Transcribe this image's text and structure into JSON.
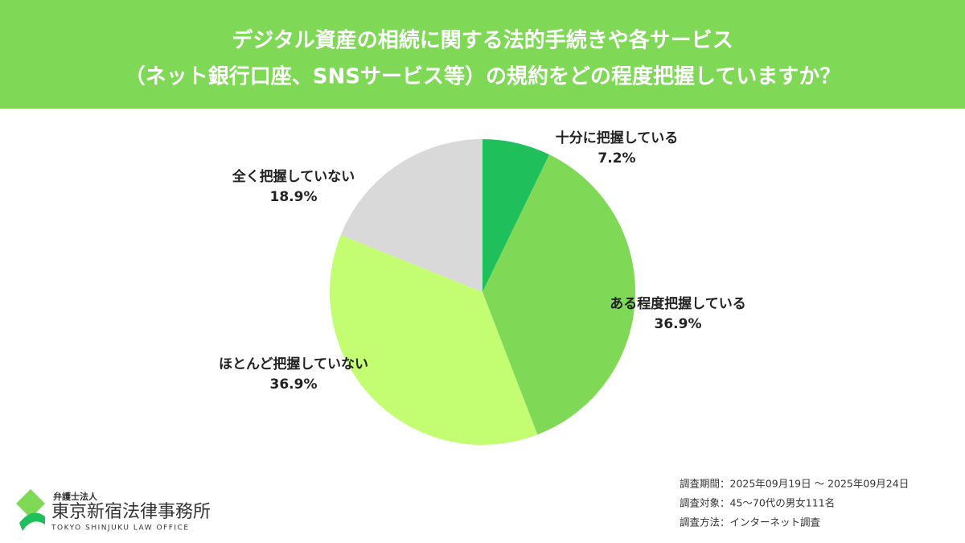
{
  "chart_data": {
    "type": "pie",
    "title": [
      "デジタル資産の相続に関する法的手続きや各サービス",
      "（ネット銀行口座、SNSサービス等）の規約をどの程度把握していますか？"
    ],
    "categories": [
      "十分に把握している",
      "ある程度把握している",
      "ほとんど把握していない",
      "全く把握していない"
    ],
    "values": [
      7.2,
      36.9,
      36.9,
      18.9
    ],
    "value_labels": [
      "7.2%",
      "36.9%",
      "36.9%",
      "18.9%"
    ],
    "colors": [
      "#1fbf5c",
      "#7fd957",
      "#c3fd72",
      "#d9d9d9"
    ]
  },
  "notes": [
    "調査期間：2025年09月19日 〜 2025年09月24日",
    "調査対象：45〜70代の男女111名",
    "調査方法：インターネット調査"
  ],
  "logo": {
    "kind": "弁護士法人",
    "name": "東京新宿法律事務所",
    "english": "TOKYO SHINJUKU LAW OFFICE"
  }
}
